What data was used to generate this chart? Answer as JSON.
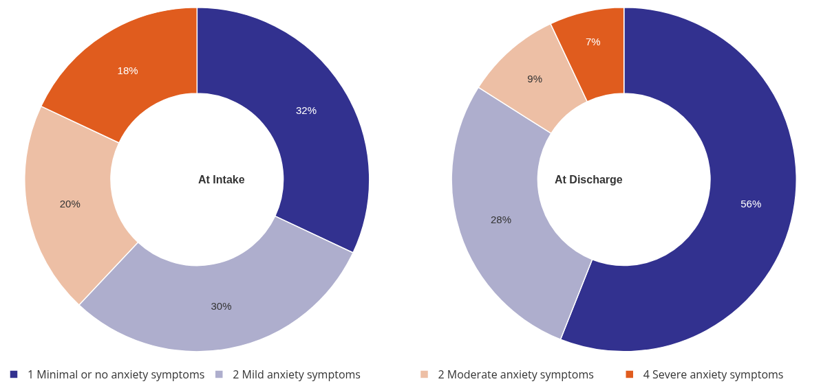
{
  "chart_data": {
    "type": "donut",
    "categories": [
      "1 Minimal or no anxiety symptoms",
      "2 Mild anxiety symptoms",
      "2 Moderate anxiety symptoms",
      "4 Severe anxiety symptoms"
    ],
    "colors": [
      "#32318f",
      "#aeaecd",
      "#edbfa5",
      "#e05c1e"
    ],
    "legend": "bottom",
    "series": [
      {
        "name": "At Intake",
        "values": [
          32,
          30,
          20,
          18
        ],
        "value_labels": [
          "32%",
          "30%",
          "20%",
          "18%"
        ]
      },
      {
        "name": "At Discharge",
        "values": [
          56,
          28,
          9,
          7
        ],
        "value_labels": [
          "56%",
          "28%",
          "9%",
          "7%"
        ]
      }
    ]
  }
}
